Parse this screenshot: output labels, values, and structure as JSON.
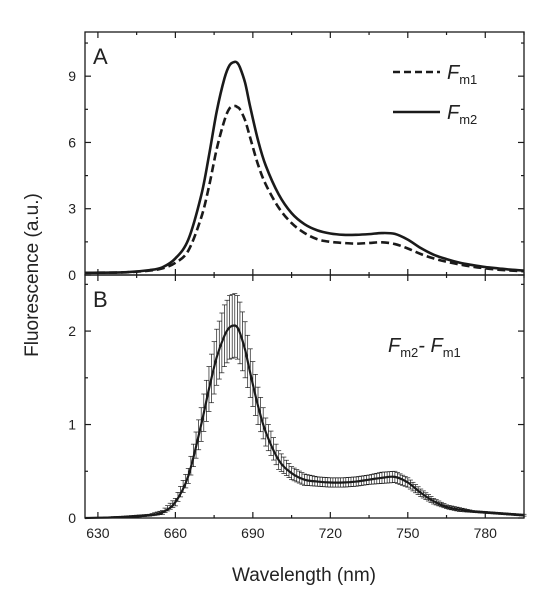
{
  "chart_data": [
    {
      "type": "line",
      "panel_label": "A",
      "xlim": [
        625,
        795
      ],
      "ylim": [
        0,
        11
      ],
      "yticks": [
        0,
        3,
        6,
        9
      ],
      "ytick_labels": [
        "0",
        "3",
        "6",
        "9"
      ],
      "legend_position": "top-right",
      "grid": false,
      "series": [
        {
          "legend_main": "F",
          "legend_sub": "m1",
          "style": "dashed",
          "color": "#1a1a1a",
          "x": [
            625,
            640,
            650,
            655,
            660,
            665,
            670,
            673,
            676,
            679,
            681,
            683,
            684,
            685,
            687,
            689,
            692,
            695,
            700,
            705,
            710,
            715,
            720,
            725,
            730,
            735,
            740,
            745,
            750,
            755,
            760,
            765,
            770,
            775,
            780,
            785,
            790,
            795
          ],
          "y": [
            0.1,
            0.12,
            0.2,
            0.3,
            0.55,
            1.1,
            2.6,
            4.0,
            5.7,
            7.0,
            7.55,
            7.65,
            7.6,
            7.5,
            7.0,
            6.2,
            5.0,
            4.1,
            3.05,
            2.35,
            1.9,
            1.62,
            1.5,
            1.45,
            1.42,
            1.45,
            1.48,
            1.4,
            1.2,
            0.95,
            0.75,
            0.6,
            0.48,
            0.38,
            0.3,
            0.24,
            0.2,
            0.17
          ]
        },
        {
          "legend_main": "F",
          "legend_sub": "m2",
          "style": "solid",
          "color": "#1a1a1a",
          "x": [
            625,
            640,
            650,
            655,
            660,
            665,
            670,
            673,
            676,
            679,
            681,
            683,
            684,
            685,
            687,
            689,
            692,
            695,
            700,
            705,
            710,
            715,
            720,
            725,
            730,
            735,
            740,
            745,
            750,
            755,
            760,
            765,
            770,
            775,
            780,
            785,
            790,
            795
          ],
          "y": [
            0.1,
            0.12,
            0.22,
            0.35,
            0.75,
            1.6,
            3.6,
            5.4,
            7.4,
            8.9,
            9.5,
            9.65,
            9.6,
            9.4,
            8.7,
            7.6,
            6.1,
            4.95,
            3.65,
            2.8,
            2.3,
            2.02,
            1.88,
            1.82,
            1.82,
            1.85,
            1.9,
            1.86,
            1.6,
            1.22,
            0.92,
            0.72,
            0.56,
            0.45,
            0.36,
            0.3,
            0.24,
            0.2
          ]
        }
      ]
    },
    {
      "type": "line",
      "panel_label": "B",
      "xlim": [
        625,
        795
      ],
      "ylim": [
        0,
        2.6
      ],
      "yticks": [
        0,
        1,
        2
      ],
      "ytick_labels": [
        "0",
        "1",
        "2"
      ],
      "xticks": [
        630,
        660,
        690,
        720,
        750,
        780
      ],
      "xtick_labels": [
        "630",
        "660",
        "690",
        "720",
        "750",
        "780"
      ],
      "xlabel": "Wavelength (nm)",
      "legend_position": "top-right",
      "grid": false,
      "series": [
        {
          "legend_main": "F",
          "legend_sub": "m2",
          "legend_sep": "- ",
          "legend_main2": "F",
          "legend_sub2": "m1",
          "style": "solid-with-errorbars",
          "color": "#1a1a1a",
          "x": [
            625,
            640,
            650,
            655,
            660,
            665,
            670,
            673,
            676,
            679,
            681,
            683,
            684,
            685,
            687,
            689,
            692,
            695,
            700,
            705,
            710,
            715,
            720,
            725,
            730,
            735,
            740,
            745,
            750,
            755,
            760,
            765,
            770,
            775,
            780,
            785,
            790,
            795
          ],
          "y": [
            0.0,
            0.01,
            0.03,
            0.06,
            0.17,
            0.45,
            1.0,
            1.38,
            1.72,
            1.95,
            2.04,
            2.06,
            2.04,
            1.98,
            1.8,
            1.55,
            1.2,
            0.92,
            0.62,
            0.48,
            0.41,
            0.39,
            0.38,
            0.38,
            0.39,
            0.41,
            0.43,
            0.44,
            0.38,
            0.27,
            0.18,
            0.12,
            0.09,
            0.07,
            0.06,
            0.05,
            0.04,
            0.03
          ],
          "error": [
            0.0,
            0.01,
            0.01,
            0.02,
            0.04,
            0.08,
            0.18,
            0.24,
            0.3,
            0.33,
            0.34,
            0.34,
            0.34,
            0.33,
            0.3,
            0.26,
            0.2,
            0.15,
            0.1,
            0.07,
            0.06,
            0.05,
            0.05,
            0.05,
            0.05,
            0.05,
            0.06,
            0.06,
            0.05,
            0.04,
            0.03,
            0.02,
            0.02,
            0.01,
            0.01,
            0.01,
            0.01,
            0.01
          ]
        }
      ]
    }
  ],
  "ylabel": "Fluorescence (a.u.)"
}
